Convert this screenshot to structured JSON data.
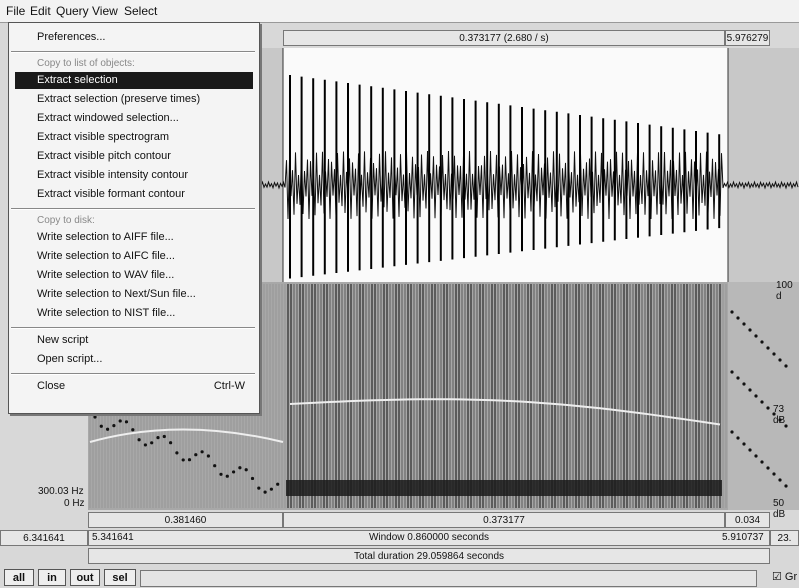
{
  "menubar": [
    "File",
    "Edit",
    "Query",
    "View",
    "Select"
  ],
  "file_menu": {
    "highlighted": "Extract selection",
    "groups": [
      {
        "items": [
          {
            "label": "Preferences..."
          }
        ]
      },
      {
        "heading": "Copy to list of objects:",
        "items": [
          {
            "label": "Extract selection"
          },
          {
            "label": "Extract selection (preserve times)"
          },
          {
            "label": "Extract windowed selection..."
          },
          {
            "label": "Extract visible spectrogram"
          },
          {
            "label": "Extract visible pitch contour"
          },
          {
            "label": "Extract visible intensity contour"
          },
          {
            "label": "Extract visible formant contour"
          }
        ]
      },
      {
        "heading": "Copy to disk:",
        "items": [
          {
            "label": "Write selection to AIFF file..."
          },
          {
            "label": "Write selection to AIFC file..."
          },
          {
            "label": "Write selection to WAV file..."
          },
          {
            "label": "Write selection to Next/Sun file..."
          },
          {
            "label": "Write selection to NIST file..."
          }
        ]
      },
      {
        "items": [
          {
            "label": "New script"
          },
          {
            "label": "Open script..."
          }
        ]
      },
      {
        "items": [
          {
            "label": "Close",
            "shortcut": "Ctrl-W"
          }
        ]
      }
    ]
  },
  "editor": {
    "top_bar": {
      "selection": "0.373177 (2.680 / s)",
      "right": "5.976279"
    },
    "right_labels": [
      "100 d",
      "73 dB",
      "50 dB"
    ],
    "left_labels": [
      "300.03 Hz",
      "0 Hz"
    ],
    "row1": {
      "left": "0.381460",
      "middle": "0.373177",
      "right": "0.034"
    },
    "row2": {
      "outer_left": "6.341641",
      "left": "5.341641",
      "window": "Window 0.860000 seconds",
      "right": "5.910737",
      "outer_right": "23."
    },
    "total": "Total duration 29.059864 seconds",
    "buttons": [
      "all",
      "in",
      "out",
      "sel"
    ],
    "checkbox": "Gr"
  }
}
